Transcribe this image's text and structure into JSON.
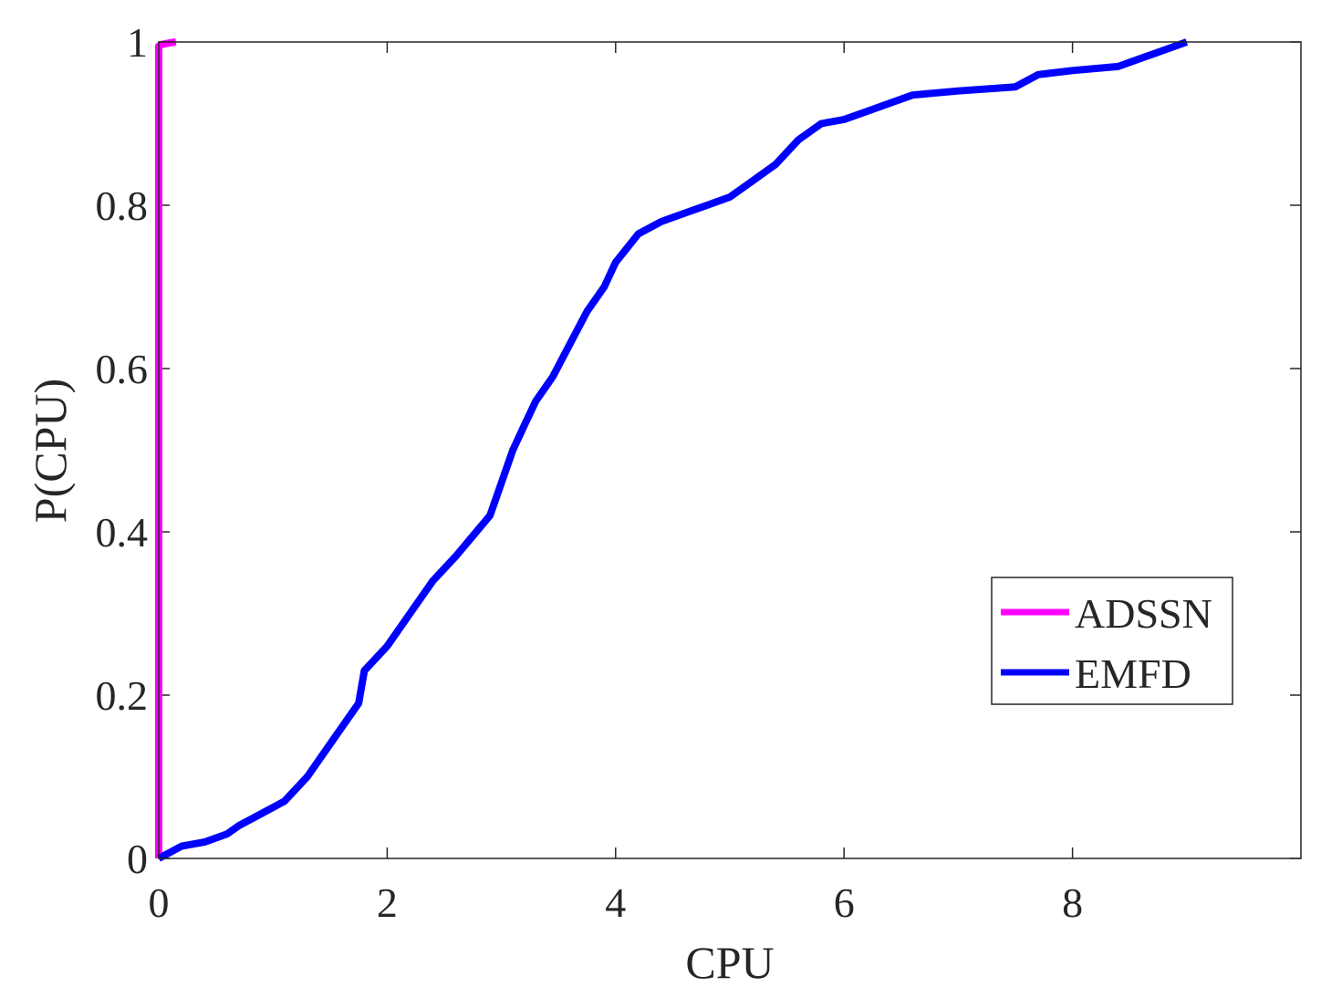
{
  "chart_data": {
    "type": "line",
    "title": "",
    "xlabel": "CPU",
    "ylabel": "P(CPU)",
    "xlim": [
      0,
      10
    ],
    "ylim": [
      0,
      1
    ],
    "xticks": [
      0,
      2,
      4,
      6,
      8
    ],
    "yticks": [
      0,
      0.2,
      0.4,
      0.6,
      0.8,
      1
    ],
    "xtick_labels": [
      "0",
      "2",
      "4",
      "6",
      "8"
    ],
    "ytick_labels": [
      "0",
      "0.2",
      "0.4",
      "0.6",
      "0.8",
      "1"
    ],
    "grid": false,
    "legend_position": "right",
    "series": [
      {
        "name": "ADSSN",
        "color": "#ff00ff",
        "x": [
          0,
          0,
          0.03,
          0.06,
          0.1,
          0.15
        ],
        "y": [
          0,
          0.995,
          0.997,
          0.998,
          0.999,
          1.0
        ]
      },
      {
        "name": "EMFD",
        "color": "#0000ff",
        "x": [
          0,
          0.2,
          0.4,
          0.6,
          0.7,
          0.9,
          1.1,
          1.3,
          1.5,
          1.6,
          1.75,
          1.8,
          2.0,
          2.2,
          2.4,
          2.6,
          2.75,
          2.9,
          3.0,
          3.1,
          3.2,
          3.3,
          3.45,
          3.6,
          3.75,
          3.9,
          4.0,
          4.2,
          4.4,
          4.6,
          4.8,
          5.0,
          5.2,
          5.4,
          5.6,
          5.8,
          6.0,
          6.2,
          6.4,
          6.6,
          7.0,
          7.5,
          7.7,
          8.0,
          8.4,
          8.6,
          8.8,
          9.0
        ],
        "y": [
          0,
          0.015,
          0.02,
          0.03,
          0.04,
          0.055,
          0.07,
          0.1,
          0.14,
          0.16,
          0.19,
          0.23,
          0.26,
          0.3,
          0.34,
          0.37,
          0.395,
          0.42,
          0.46,
          0.5,
          0.53,
          0.56,
          0.59,
          0.63,
          0.67,
          0.7,
          0.73,
          0.765,
          0.78,
          0.79,
          0.8,
          0.81,
          0.83,
          0.85,
          0.88,
          0.9,
          0.905,
          0.915,
          0.925,
          0.935,
          0.94,
          0.945,
          0.96,
          0.965,
          0.97,
          0.98,
          0.99,
          1.0
        ]
      }
    ]
  }
}
